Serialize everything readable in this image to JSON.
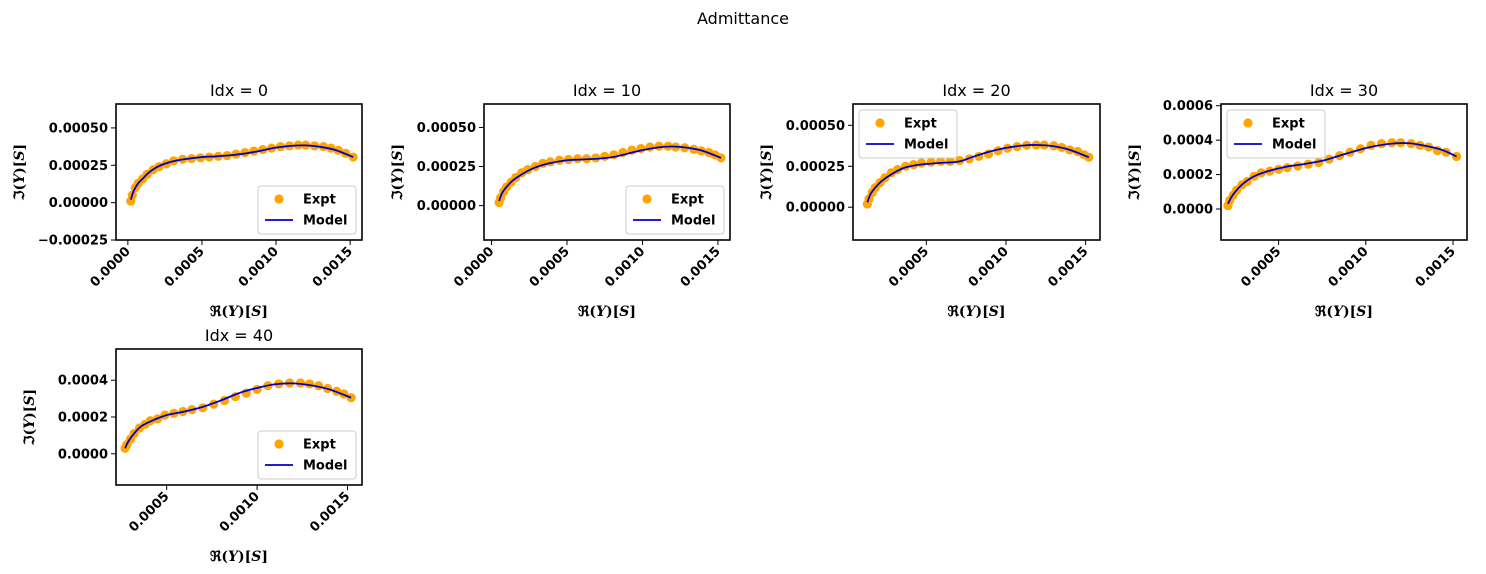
{
  "figure": {
    "title": "Admittance"
  },
  "chart_data": [
    {
      "type": "line",
      "title": "Idx = 0",
      "xlabel": "ℜ(Y)[S]",
      "ylabel": "ℑ(Y)[S]",
      "xlim": [
        -8e-05,
        0.00158
      ],
      "ylim": [
        -0.00025,
        0.00066
      ],
      "xticks": [
        "0.0000",
        "0.0005",
        "0.0010",
        "0.0015"
      ],
      "yticks": [
        "−0.00025",
        "0.00000",
        "0.00025",
        "0.00050"
      ],
      "legend": {
        "position": "lower right",
        "entries": [
          "Expt",
          "Model"
        ]
      },
      "series": [
        {
          "name": "Expt",
          "kind": "scatter",
          "color": "#FFA500",
          "x": [
            2e-05,
            3e-05,
            5e-05,
            7e-05,
            0.0001,
            0.00013,
            0.00017,
            0.00021,
            0.00026,
            0.00031,
            0.00037,
            0.00043,
            0.00049,
            0.00055,
            0.00061,
            0.00067,
            0.00073,
            0.00079,
            0.00085,
            0.00091,
            0.00097,
            0.00103,
            0.00109,
            0.00115,
            0.0012,
            0.00126,
            0.00132,
            0.00137,
            0.00142,
            0.00147,
            0.00152
          ],
          "y": [
            1e-05,
            5e-05,
            0.0001,
            0.00013,
            0.00016,
            0.00019,
            0.00022,
            0.00024,
            0.00026,
            0.00028,
            0.00029,
            0.000295,
            0.0003,
            0.000305,
            0.00031,
            0.000315,
            0.000325,
            0.000335,
            0.000345,
            0.000355,
            0.000365,
            0.000375,
            0.00038,
            0.000385,
            0.000385,
            0.00038,
            0.000375,
            0.000365,
            0.00035,
            0.00033,
            0.000305
          ]
        },
        {
          "name": "Model",
          "kind": "line",
          "color": "#0000CD",
          "x": [
            2e-05,
            4e-05,
            7e-05,
            0.0001,
            0.00014,
            0.0002,
            0.00028,
            0.00038,
            0.0005,
            0.0006,
            0.0007,
            0.0008,
            0.0009,
            0.001,
            0.0011,
            0.0012,
            0.0013,
            0.0014,
            0.00152
          ],
          "y": [
            2e-05,
            8e-05,
            0.00013,
            0.00016,
            0.0002,
            0.00024,
            0.00027,
            0.00029,
            0.000305,
            0.00031,
            0.000318,
            0.00033,
            0.000348,
            0.000368,
            0.00038,
            0.000383,
            0.000373,
            0.000352,
            0.000305
          ]
        }
      ]
    },
    {
      "type": "line",
      "title": "Idx = 10",
      "xlabel": "ℜ(Y)[S]",
      "ylabel": "ℑ(Y)[S]",
      "xlim": [
        -5e-05,
        0.00158
      ],
      "ylim": [
        -0.00022,
        0.00065
      ],
      "xticks": [
        "0.0000",
        "0.0005",
        "0.0010",
        "0.0015"
      ],
      "yticks": [
        "0.00000",
        "0.00025",
        "0.00050"
      ],
      "legend": {
        "position": "lower right",
        "entries": [
          "Expt",
          "Model"
        ]
      },
      "series": [
        {
          "name": "Expt",
          "kind": "scatter",
          "color": "#FFA500",
          "x": [
            5e-05,
            6e-05,
            8e-05,
            0.0001,
            0.00013,
            0.00016,
            0.0002,
            0.00024,
            0.00029,
            0.00034,
            0.00039,
            0.00045,
            0.00051,
            0.00057,
            0.00063,
            0.00069,
            0.00075,
            0.00081,
            0.00087,
            0.00093,
            0.00099,
            0.00105,
            0.00111,
            0.00117,
            0.00122,
            0.00128,
            0.00134,
            0.00139,
            0.00144,
            0.00148,
            0.00152
          ],
          "y": [
            2e-05,
            5e-05,
            9e-05,
            0.00012,
            0.00015,
            0.00018,
            0.00021,
            0.00023,
            0.00025,
            0.00027,
            0.00028,
            0.00029,
            0.000295,
            0.0003,
            0.0003,
            0.000305,
            0.000315,
            0.000325,
            0.00034,
            0.000355,
            0.000365,
            0.000375,
            0.00038,
            0.00038,
            0.000375,
            0.00037,
            0.00036,
            0.00035,
            0.00034,
            0.000325,
            0.000305
          ]
        },
        {
          "name": "Model",
          "kind": "line",
          "color": "#0000CD",
          "x": [
            5e-05,
            7e-05,
            0.0001,
            0.00014,
            0.0002,
            0.00028,
            0.00038,
            0.0005,
            0.0006,
            0.0007,
            0.0008,
            0.0009,
            0.001,
            0.0011,
            0.0012,
            0.0013,
            0.0014,
            0.00152
          ],
          "y": [
            3e-05,
            8e-05,
            0.00012,
            0.00016,
            0.0002,
            0.00024,
            0.00027,
            0.00029,
            0.000295,
            0.0003,
            0.00031,
            0.000332,
            0.000355,
            0.000372,
            0.000378,
            0.00037,
            0.00035,
            0.000305
          ]
        }
      ]
    },
    {
      "type": "line",
      "title": "Idx = 20",
      "xlabel": "ℜ(Y)[S]",
      "ylabel": "ℑ(Y)[S]",
      "xlim": [
        4e-05,
        0.00159
      ],
      "ylim": [
        -0.0002,
        0.00063
      ],
      "xticks": [
        "0.0005",
        "0.0010",
        "0.0015"
      ],
      "yticks": [
        "0.00000",
        "0.00025",
        "0.00050"
      ],
      "legend": {
        "position": "upper left",
        "entries": [
          "Expt",
          "Model"
        ]
      },
      "series": [
        {
          "name": "Expt",
          "kind": "scatter",
          "color": "#FFA500",
          "x": [
            0.00013,
            0.00014,
            0.00016,
            0.00018,
            0.00021,
            0.00024,
            0.00028,
            0.00032,
            0.00037,
            0.00042,
            0.00047,
            0.00053,
            0.00059,
            0.00065,
            0.00071,
            0.00077,
            0.00083,
            0.00089,
            0.00095,
            0.00101,
            0.00107,
            0.00113,
            0.00119,
            0.00124,
            0.0013,
            0.00135,
            0.0014,
            0.00145,
            0.00149,
            0.00152
          ],
          "y": [
            2e-05,
            5e-05,
            9e-05,
            0.00012,
            0.00015,
            0.00018,
            0.00021,
            0.00023,
            0.00025,
            0.00026,
            0.00027,
            0.000275,
            0.00028,
            0.00028,
            0.000285,
            0.000295,
            0.00031,
            0.000325,
            0.000345,
            0.00036,
            0.00037,
            0.000378,
            0.00038,
            0.00038,
            0.000375,
            0.000365,
            0.00035,
            0.00034,
            0.00032,
            0.000305
          ]
        },
        {
          "name": "Model",
          "kind": "line",
          "color": "#0000CD",
          "x": [
            0.00013,
            0.00015,
            0.00018,
            0.00022,
            0.00028,
            0.00036,
            0.00046,
            0.00058,
            0.0007,
            0.0008,
            0.0009,
            0.001,
            0.0011,
            0.0012,
            0.0013,
            0.0014,
            0.00152
          ],
          "y": [
            3e-05,
            8e-05,
            0.00012,
            0.00016,
            0.0002,
            0.00024,
            0.00026,
            0.00027,
            0.000278,
            0.00031,
            0.00034,
            0.000362,
            0.000376,
            0.00038,
            0.000372,
            0.00035,
            0.000305
          ]
        }
      ]
    },
    {
      "type": "line",
      "title": "Idx = 30",
      "xlabel": "ℜ(Y)[S]",
      "ylabel": "ℑ(Y)[S]",
      "xlim": [
        0.00017,
        0.00158
      ],
      "ylim": [
        -0.00018,
        0.00061
      ],
      "xticks": [
        "0.0005",
        "0.0010",
        "0.0015"
      ],
      "yticks": [
        "0.0000",
        "0.0002",
        "0.0004",
        "0.0006"
      ],
      "legend": {
        "position": "upper left",
        "entries": [
          "Expt",
          "Model"
        ]
      },
      "series": [
        {
          "name": "Expt",
          "kind": "scatter",
          "color": "#FFA500",
          "x": [
            0.00021,
            0.00022,
            0.00024,
            0.00026,
            0.00029,
            0.00032,
            0.00036,
            0.0004,
            0.00045,
            0.0005,
            0.00055,
            0.00061,
            0.00067,
            0.00073,
            0.00079,
            0.00085,
            0.00091,
            0.00097,
            0.00103,
            0.00109,
            0.00115,
            0.0012,
            0.00126,
            0.00131,
            0.00136,
            0.00141,
            0.00146,
            0.00152
          ],
          "y": [
            2e-05,
            5e-05,
            8e-05,
            0.00011,
            0.00014,
            0.00016,
            0.00019,
            0.00021,
            0.00022,
            0.00023,
            0.00024,
            0.00025,
            0.00026,
            0.00027,
            0.00029,
            0.00031,
            0.00033,
            0.00035,
            0.00037,
            0.00038,
            0.000385,
            0.000385,
            0.00038,
            0.00037,
            0.00036,
            0.00034,
            0.00033,
            0.000305
          ]
        },
        {
          "name": "Model",
          "kind": "line",
          "color": "#0000CD",
          "x": [
            0.00021,
            0.00023,
            0.00026,
            0.0003,
            0.00036,
            0.00044,
            0.00054,
            0.00064,
            0.00075,
            0.00085,
            0.00095,
            0.00105,
            0.00115,
            0.00125,
            0.00135,
            0.00144,
            0.00152
          ],
          "y": [
            3e-05,
            7e-05,
            0.00011,
            0.00015,
            0.00019,
            0.00022,
            0.000245,
            0.00026,
            0.00028,
            0.00031,
            0.00034,
            0.000365,
            0.00038,
            0.000382,
            0.000365,
            0.000342,
            0.000305
          ]
        }
      ]
    },
    {
      "type": "line",
      "title": "Idx = 40",
      "xlabel": "ℜ(Y)[S]",
      "ylabel": "ℑ(Y)[S]",
      "xlim": [
        0.00022,
        0.00158
      ],
      "ylim": [
        -0.00017,
        0.00057
      ],
      "xticks": [
        "0.0005",
        "0.0010",
        "0.0015"
      ],
      "yticks": [
        "0.0000",
        "0.0002",
        "0.0004"
      ],
      "legend": {
        "position": "lower right",
        "entries": [
          "Expt",
          "Model"
        ]
      },
      "series": [
        {
          "name": "Expt",
          "kind": "scatter",
          "color": "#FFA500",
          "x": [
            0.00027,
            0.00028,
            0.0003,
            0.00032,
            0.00035,
            0.00038,
            0.00041,
            0.00045,
            0.00049,
            0.00054,
            0.00059,
            0.00064,
            0.0007,
            0.00076,
            0.00082,
            0.00088,
            0.00094,
            0.001,
            0.00106,
            0.00112,
            0.00118,
            0.00124,
            0.00129,
            0.00134,
            0.00139,
            0.00144,
            0.00148,
            0.00152
          ],
          "y": [
            3e-05,
            5e-05,
            8e-05,
            0.00011,
            0.00014,
            0.00016,
            0.00018,
            0.00019,
            0.00021,
            0.00022,
            0.00023,
            0.00024,
            0.00025,
            0.00027,
            0.00029,
            0.00031,
            0.00033,
            0.00035,
            0.00037,
            0.00038,
            0.000385,
            0.000385,
            0.00038,
            0.00037,
            0.000355,
            0.00034,
            0.000325,
            0.000305
          ]
        },
        {
          "name": "Model",
          "kind": "line",
          "color": "#0000CD",
          "x": [
            0.00027,
            0.00029,
            0.00032,
            0.00036,
            0.00042,
            0.0005,
            0.0006,
            0.0007,
            0.0008,
            0.0009,
            0.001,
            0.0011,
            0.0012,
            0.0013,
            0.0014,
            0.00152
          ],
          "y": [
            3e-05,
            7e-05,
            0.00011,
            0.00015,
            0.00018,
            0.00021,
            0.00023,
            0.000255,
            0.00029,
            0.00033,
            0.000358,
            0.000378,
            0.000383,
            0.000372,
            0.00035,
            0.000305
          ]
        }
      ]
    }
  ]
}
